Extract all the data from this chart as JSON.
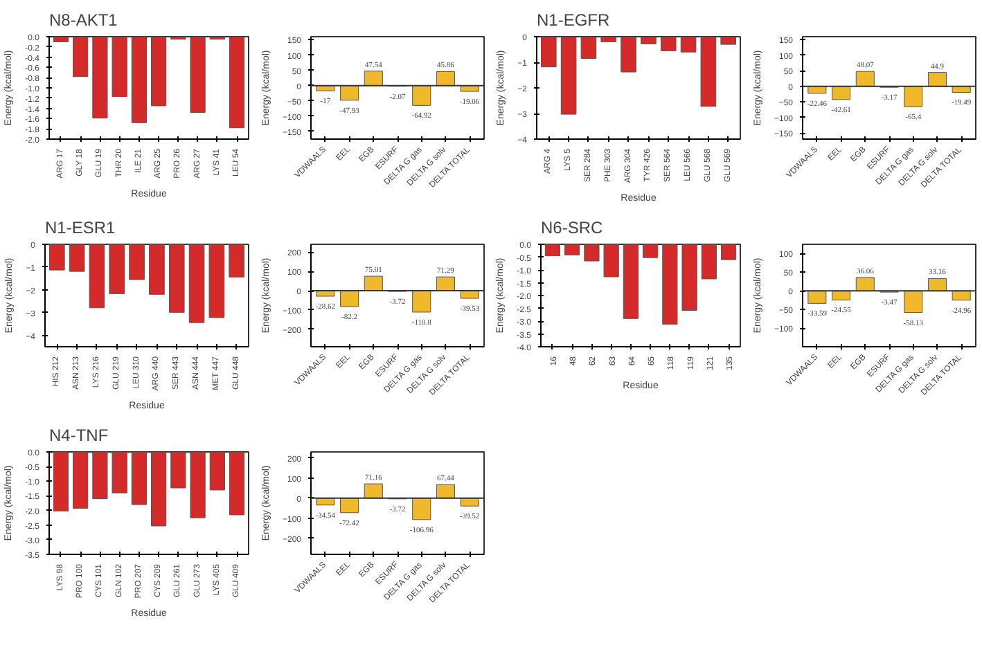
{
  "chart_data": [
    {
      "type": "bar",
      "title": "N8-AKT1",
      "xlabel": "Residue",
      "ylabel": "Energy (kcal/mol)",
      "categories": [
        "ARG 17",
        "GLY 18",
        "GLU 19",
        "THR 20",
        "ILE 21",
        "ARG 25",
        "PRO 26",
        "ARG 27",
        "LYS 41",
        "LEU 54"
      ],
      "values": [
        -0.1,
        -0.78,
        -1.59,
        -1.17,
        -1.68,
        -1.35,
        -0.05,
        -1.48,
        -0.05,
        -1.78
      ],
      "color": "#d42a2a",
      "ylim": [
        -2.0,
        0.0
      ],
      "yticks": [
        {
          "value": 0,
          "label": "0.0"
        },
        {
          "value": -0.2,
          "label": "-0.2"
        },
        {
          "value": -0.4,
          "label": "-0.4"
        },
        {
          "value": -0.6,
          "label": "-0.6"
        },
        {
          "value": -0.8,
          "label": "-0.8"
        },
        {
          "value": -1.0,
          "label": "-1.0"
        },
        {
          "value": -1.2,
          "label": "-1.2"
        },
        {
          "value": -1.4,
          "label": "-1.4"
        },
        {
          "value": -1.6,
          "label": "-1.6"
        },
        {
          "value": -1.8,
          "label": "-1.8"
        },
        {
          "value": -2.0,
          "label": "-2.0"
        }
      ]
    },
    {
      "type": "bar",
      "ylabel": "Energy (kcal/mol)",
      "categories": [
        "VDWAALS",
        "EEL",
        "EGB",
        "ESURF",
        "DELTA G gas",
        "DELTA G solv",
        "DELTA TOTAL"
      ],
      "values": [
        -17,
        -47.93,
        47.54,
        -2.07,
        -64.92,
        45.86,
        -19.06
      ],
      "color": "#f0b92b",
      "data_labels": true,
      "ylim": [
        -175,
        160
      ],
      "yticks": [
        -150,
        -100,
        -50,
        0,
        50,
        100,
        150
      ],
      "ref_lines": [
        {
          "axis": "y",
          "value": 0
        }
      ]
    },
    {
      "type": "bar",
      "title": "N1-EGFR",
      "xlabel": "Residue",
      "ylabel": "Energy (kcal/mol)",
      "categories": [
        "ARG 4",
        "LYS 5",
        "SER 284",
        "PHE 303",
        "ARG 304",
        "TYR 426",
        "SER 564",
        "LEU 566",
        "GLU 568",
        "GLU 569"
      ],
      "values": [
        -1.18,
        -3.03,
        -0.85,
        -0.2,
        -1.38,
        -0.28,
        -0.55,
        -0.6,
        -2.72,
        -0.3
      ],
      "color": "#d42a2a",
      "ylim": [
        -4,
        0
      ],
      "yticks": [
        0,
        -1,
        -2,
        -3,
        -4
      ]
    },
    {
      "type": "bar",
      "ylabel": "Energy (kcal/mol)",
      "categories": [
        "VDWAALS",
        "EEL",
        "EGB",
        "ESURF",
        "DELTA G gas",
        "DELTA G solv",
        "DELTA TOTAL"
      ],
      "values": [
        -22.46,
        -42.61,
        48.07,
        -3.17,
        -65.4,
        44.9,
        -19.49
      ],
      "color": "#f0b92b",
      "data_labels": true,
      "ylim": [
        -170,
        160
      ],
      "yticks": [
        -150,
        -100,
        -50,
        0,
        50,
        100,
        150
      ],
      "ref_lines": [
        {
          "axis": "y",
          "value": 0
        }
      ]
    },
    {
      "type": "bar",
      "title": "N1-ESR1",
      "xlabel": "Residue",
      "ylabel": "Energy (kcal/mol)",
      "categories": [
        "HIS 212",
        "ASN 213",
        "LYS 216",
        "GLU 219",
        "LEU 310",
        "ARG 440",
        "SER 443",
        "ASN 444",
        "MET 447",
        "GLU 448"
      ],
      "values": [
        -1.13,
        -1.19,
        -2.79,
        -2.17,
        -1.55,
        -2.2,
        -2.99,
        -3.44,
        -3.22,
        -1.44
      ],
      "color": "#d42a2a",
      "ylim": [
        -4.5,
        0
      ],
      "yticks": [
        0,
        -1,
        -2,
        -3,
        -4
      ]
    },
    {
      "type": "bar",
      "ylabel": "Energy (kcal/mol)",
      "categories": [
        "VDWAALS",
        "EEL",
        "EGB",
        "ESURF",
        "DELTA G gas",
        "DELTA G solv",
        "DELTA TOTAL"
      ],
      "values": [
        -28.62,
        -82.2,
        75.01,
        -3.72,
        -110.8,
        71.29,
        -39.53
      ],
      "color": "#f0b92b",
      "data_labels": true,
      "ylim": [
        -290,
        240
      ],
      "yticks": [
        -200,
        -100,
        0,
        100,
        200
      ],
      "ref_lines": [
        {
          "axis": "y",
          "value": 0
        }
      ]
    },
    {
      "type": "bar",
      "title": "N6-SRC",
      "xlabel": "Residue",
      "ylabel": "Energy (kcal/mol)",
      "categories": [
        "16",
        "48",
        "62",
        "63",
        "64",
        "65",
        "118",
        "119",
        "121",
        "135"
      ],
      "values": [
        -0.45,
        -0.42,
        -0.65,
        -1.27,
        -2.9,
        -0.52,
        -3.12,
        -2.58,
        -1.35,
        -0.6
      ],
      "color": "#d42a2a",
      "ylim": [
        -4,
        0
      ],
      "yticks": [
        {
          "value": 0,
          "label": "0.0"
        },
        {
          "value": -0.5,
          "label": "-0.5"
        },
        {
          "value": -1,
          "label": "-1.0"
        },
        {
          "value": -1.5,
          "label": "-1.5"
        },
        {
          "value": -2,
          "label": "-2.0"
        },
        {
          "value": -2.5,
          "label": "-2.5"
        },
        {
          "value": -3,
          "label": "-3.0"
        },
        {
          "value": -3.5,
          "label": "-3.5"
        },
        {
          "value": -4,
          "label": "-4.0"
        }
      ]
    },
    {
      "type": "bar",
      "ylabel": "Energy (kcal/mol)",
      "categories": [
        "VDWAALS",
        "EEL",
        "EGB",
        "ESURF",
        "DELTA G gas",
        "DELTA G solv",
        "DELTA TOTAL"
      ],
      "values": [
        -33.59,
        -24.55,
        36.06,
        -3.47,
        -58.13,
        33.16,
        -24.96
      ],
      "color": "#f0b92b",
      "data_labels": true,
      "ylim": [
        -150,
        125
      ],
      "yticks": [
        -100,
        -50,
        0,
        50,
        100
      ],
      "ref_lines": [
        {
          "axis": "y",
          "value": 0
        }
      ]
    },
    {
      "type": "bar",
      "title": "N4-TNF",
      "xlabel": "Residue",
      "ylabel": "Energy (kcal/mol)",
      "categories": [
        "LYS 98",
        "PRO 100",
        "CYS 101",
        "GLN 102",
        "PRO 207",
        "CYS 209",
        "GLU 261",
        "GLU 273",
        "LYS 405",
        "GLU 409"
      ],
      "values": [
        -2.02,
        -1.93,
        -1.6,
        -1.4,
        -1.8,
        -2.53,
        -1.23,
        -2.25,
        -1.3,
        -2.15
      ],
      "color": "#d42a2a",
      "ylim": [
        -3.5,
        0
      ],
      "yticks": [
        {
          "value": 0,
          "label": "0.0"
        },
        {
          "value": -0.5,
          "label": "-0.5"
        },
        {
          "value": -1,
          "label": "-1.0"
        },
        {
          "value": -1.5,
          "label": "-1.5"
        },
        {
          "value": -2,
          "label": "-2.0"
        },
        {
          "value": -2.5,
          "label": "-2.5"
        },
        {
          "value": -3,
          "label": "-3.0"
        },
        {
          "value": -3.5,
          "label": "-3.5"
        }
      ]
    },
    {
      "type": "bar",
      "ylabel": "Energy (kcal/mol)",
      "categories": [
        "VDWAALS",
        "EEL",
        "EGB",
        "ESURF",
        "DELTA G gas",
        "DELTA G solv",
        "DELTA TOTAL"
      ],
      "values": [
        -34.54,
        -72.42,
        71.16,
        -3.72,
        -106.96,
        67.44,
        -39.52
      ],
      "color": "#f0b92b",
      "data_labels": true,
      "ylim": [
        -280,
        230
      ],
      "yticks": [
        -200,
        -100,
        0,
        100,
        200
      ],
      "ref_lines": [
        {
          "axis": "y",
          "value": 0
        }
      ]
    }
  ]
}
